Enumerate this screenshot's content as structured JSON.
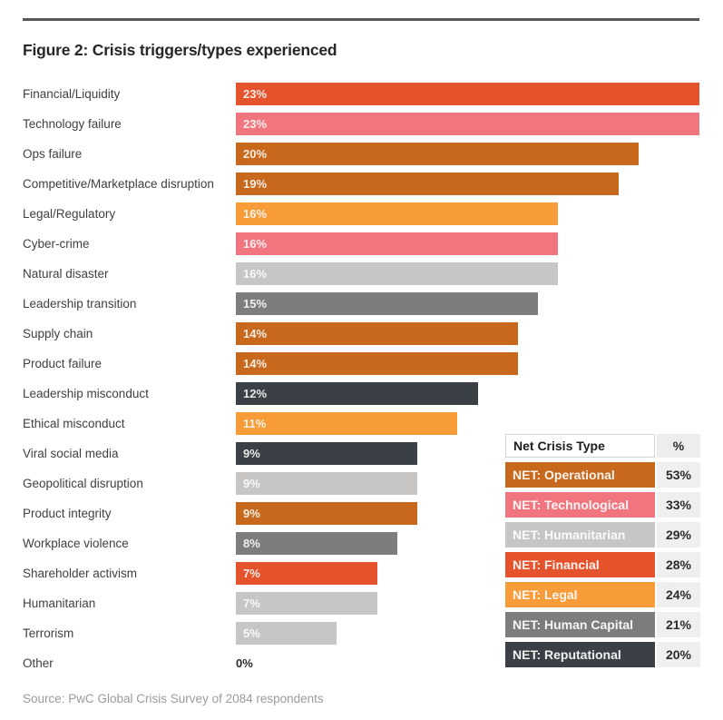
{
  "figure": {
    "title": "Figure 2: Crisis triggers/types experienced",
    "source": "Source: PwC Global Crisis Survey of 2084 respondents"
  },
  "colors": {
    "operational": "#C8681C",
    "technological": "#F1757E",
    "humanitarian": "#C8C6C4",
    "financial": "#E4532C",
    "legal": "#F89C3A",
    "human_capital": "#7E7D7B",
    "reputational": "#3B4046",
    "top_rule": "#57585A",
    "pct_cell_bg": "#EFEFEF"
  },
  "chart_data": {
    "type": "bar",
    "orientation": "horizontal",
    "title": "Figure 2: Crisis triggers/types experienced",
    "xlim": [
      0,
      23
    ],
    "value_suffix": "%",
    "grid": false,
    "legend_position": "bottom-right-table",
    "categories": [
      "Financial/Liquidity",
      "Technology failure",
      "Ops failure",
      "Competitive/Marketplace disruption",
      "Legal/Regulatory",
      "Cyber-crime",
      "Natural disaster",
      "Leadership transition",
      "Supply chain",
      "Product failure",
      "Leadership misconduct",
      "Ethical misconduct",
      "Viral social media",
      "Geopolitical disruption",
      "Product integrity",
      "Workplace violence",
      "Shareholder activism",
      "Humanitarian",
      "Terrorism",
      "Other"
    ],
    "values": [
      23,
      23,
      20,
      19,
      16,
      16,
      16,
      15,
      14,
      14,
      12,
      11,
      9,
      9,
      9,
      8,
      7,
      7,
      5,
      0
    ],
    "value_labels": [
      "23%",
      "23%",
      "20%",
      "19%",
      "16%",
      "16%",
      "16%",
      "15%",
      "14%",
      "14%",
      "12%",
      "11%",
      "9%",
      "9%",
      "9%",
      "8%",
      "7%",
      "7%",
      "5%",
      "0%"
    ],
    "color_keys": [
      "financial",
      "technological",
      "operational",
      "operational",
      "legal",
      "technological",
      "humanitarian",
      "human_capital",
      "operational",
      "operational",
      "reputational",
      "legal",
      "reputational",
      "humanitarian",
      "operational",
      "human_capital",
      "financial",
      "humanitarian",
      "humanitarian",
      null
    ]
  },
  "legend_table": {
    "header": {
      "name": "Net Crisis Type",
      "pct": "%"
    },
    "rows": [
      {
        "label": "NET: Operational",
        "value": "53%",
        "color_key": "operational"
      },
      {
        "label": "NET: Technological",
        "value": "33%",
        "color_key": "technological"
      },
      {
        "label": "NET: Humanitarian",
        "value": "29%",
        "color_key": "humanitarian"
      },
      {
        "label": "NET: Financial",
        "value": "28%",
        "color_key": "financial"
      },
      {
        "label": "NET: Legal",
        "value": "24%",
        "color_key": "legal"
      },
      {
        "label": "NET: Human Capital",
        "value": "21%",
        "color_key": "human_capital"
      },
      {
        "label": "NET: Reputational",
        "value": "20%",
        "color_key": "reputational"
      }
    ]
  }
}
